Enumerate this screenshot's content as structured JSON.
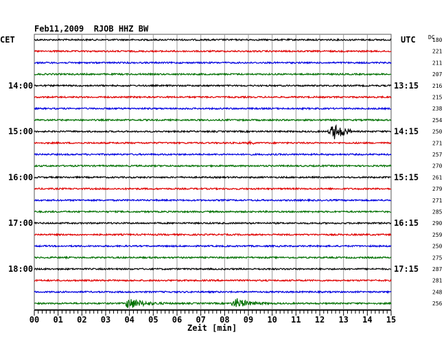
{
  "header": {
    "title": "Feb11,2009  RJOB HHZ BW",
    "left_zone": "CET",
    "right_zone": "UTC",
    "dc_label": "DC"
  },
  "chart_data": {
    "type": "line",
    "title": "Feb11,2009  RJOB HHZ BW",
    "xlabel": "Zeit [min]",
    "x_ticks": [
      "00",
      "01",
      "02",
      "03",
      "04",
      "05",
      "06",
      "07",
      "08",
      "09",
      "10",
      "11",
      "12",
      "13",
      "14",
      "15"
    ],
    "xlim": [
      0,
      15
    ],
    "grid": true,
    "trace_colors": [
      "#000000",
      "#e00000",
      "#0000e0",
      "#007000"
    ],
    "left_hour_labels": [
      {
        "row": 4,
        "text": "14:00"
      },
      {
        "row": 8,
        "text": "15:00"
      },
      {
        "row": 12,
        "text": "16:00"
      },
      {
        "row": 16,
        "text": "17:00"
      },
      {
        "row": 20,
        "text": "18:00"
      }
    ],
    "right_hour_labels": [
      {
        "row": 4,
        "text": "13:15"
      },
      {
        "row": 8,
        "text": "14:15"
      },
      {
        "row": 12,
        "text": "15:15"
      },
      {
        "row": 16,
        "text": "16:15"
      },
      {
        "row": 20,
        "text": "17:15"
      }
    ],
    "dc_offsets": [
      "180",
      "221",
      "211",
      "207",
      "216",
      "215",
      "238",
      "254",
      "250",
      "271",
      "257",
      "270",
      "261",
      "279",
      "271",
      "285",
      "290",
      "259",
      "250",
      "275",
      "287",
      "281",
      "248",
      "256"
    ],
    "events": [
      {
        "row": 8,
        "start_min": 12.3,
        "end_min": 13.3,
        "peak_min": 12.6,
        "amplitude": 12
      },
      {
        "row": 9,
        "start_min": 8.85,
        "end_min": 9.35,
        "peak_min": 9.0,
        "amplitude": 2.5
      },
      {
        "row": 23,
        "start_min": 3.8,
        "end_min": 15.0,
        "peak_min": 3.95,
        "amplitude": 10
      },
      {
        "row": 23,
        "start_min": 8.2,
        "end_min": 15.0,
        "peak_min": 8.5,
        "amplitude": 8
      }
    ]
  }
}
